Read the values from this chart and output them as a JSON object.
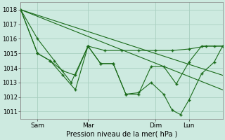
{
  "xlabel": "Pression niveau de la mer( hPa )",
  "bg_color": "#cdeae0",
  "grid_color": "#a8cfc0",
  "line_color": "#1a6b1a",
  "xlim": [
    0,
    96
  ],
  "ylim": [
    1010.5,
    1018.5
  ],
  "yticks": [
    1011,
    1012,
    1013,
    1014,
    1015,
    1016,
    1017,
    1018
  ],
  "xtick_positions": [
    8,
    32,
    64,
    80
  ],
  "xtick_labels": [
    "Sam",
    "Mar",
    "Dim",
    "Lun"
  ],
  "series1": {
    "x": [
      0,
      8,
      16,
      24,
      32,
      40,
      48,
      56,
      64,
      72,
      80,
      88,
      96
    ],
    "y": [
      1018,
      1016,
      1014.5,
      1013,
      1015.5,
      1015.2,
      1015.2,
      1015.2,
      1015.2,
      1015.2,
      1015.3,
      1015.5,
      1015.5
    ]
  },
  "series2": {
    "x": [
      0,
      8,
      14,
      20,
      26,
      32,
      38,
      44,
      50,
      56,
      62,
      68,
      74,
      80,
      86,
      92,
      96
    ],
    "y": [
      1018,
      1015,
      1014.5,
      1013.5,
      1012.5,
      1015.5,
      1014.3,
      1014.3,
      1012.2,
      1012.2,
      1014.1,
      1014.1,
      1012.9,
      1014.4,
      1015.5,
      1015.5,
      1015.5
    ]
  },
  "series3": {
    "x": [
      0,
      8,
      14,
      20,
      26,
      32,
      38,
      44,
      50,
      56,
      62,
      68,
      72,
      76,
      80,
      86,
      92,
      96
    ],
    "y": [
      1018,
      1015,
      1014.5,
      1013.8,
      1013.5,
      1015.5,
      1014.3,
      1014.3,
      1012.2,
      1012.3,
      1013.0,
      1012.2,
      1011.1,
      1010.8,
      1011.8,
      1013.6,
      1014.4,
      1015.5
    ]
  },
  "series4": {
    "x": [
      0,
      96
    ],
    "y": [
      1018,
      1013.5
    ]
  },
  "series5": {
    "x": [
      0,
      96
    ],
    "y": [
      1018,
      1012.5
    ]
  }
}
